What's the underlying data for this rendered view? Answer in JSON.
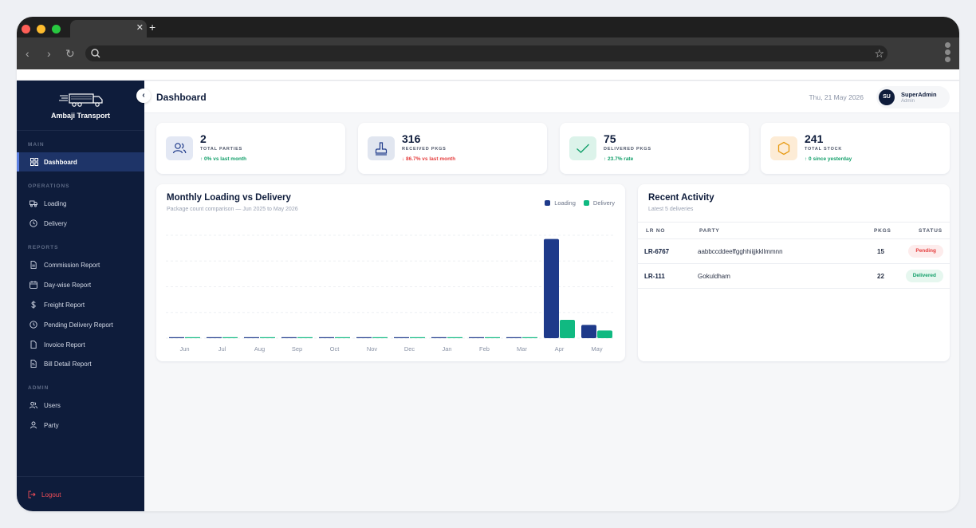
{
  "app": {
    "brand": "Ambaji Transport"
  },
  "header": {
    "title": "Dashboard",
    "date": "Thu, 21 May 2026",
    "user_initials": "SU",
    "user_name": "SuperAdmin",
    "user_role": "Admin"
  },
  "sidebar": {
    "sections": {
      "main": "MAIN",
      "operations": "OPERATIONS",
      "reports": "REPORTS",
      "admin": "ADMIN"
    },
    "items": [
      {
        "label": "Dashboard",
        "icon": "grid-icon"
      },
      {
        "label": "Loading",
        "icon": "truck-icon"
      },
      {
        "label": "Delivery",
        "icon": "clock-icon"
      },
      {
        "label": "Commission Report",
        "icon": "document-icon"
      },
      {
        "label": "Day-wise Report",
        "icon": "calendar-icon"
      },
      {
        "label": "Freight Report",
        "icon": "dollar-icon"
      },
      {
        "label": "Pending Delivery Report",
        "icon": "clock-icon"
      },
      {
        "label": "Invoice Report",
        "icon": "document-icon"
      },
      {
        "label": "Bill Detail Report",
        "icon": "receipt-icon"
      },
      {
        "label": "Users",
        "icon": "users-icon"
      },
      {
        "label": "Party",
        "icon": "user-icon"
      }
    ],
    "logout": "Logout"
  },
  "stats": [
    {
      "value": "2",
      "label": "TOTAL PARTIES",
      "delta": "↑ 0% vs last month",
      "trend": "up",
      "icon": "users-icon",
      "bg": "#e3e8f4",
      "color": "#1e3a8a"
    },
    {
      "value": "316",
      "label": "RECEIVED PKGS",
      "delta": "↓ 86.7% vs last month",
      "trend": "down",
      "icon": "inbox-icon",
      "bg": "#e1e6f0",
      "color": "#1e3a8a"
    },
    {
      "value": "75",
      "label": "DELIVERED PKGS",
      "delta": "↑ 23.7% rate",
      "trend": "up",
      "icon": "check-icon",
      "bg": "#dcf3ea",
      "color": "#14a06b"
    },
    {
      "value": "241",
      "label": "TOTAL STOCK",
      "delta": "↑ 0 since yesterday",
      "trend": "up",
      "icon": "hexagon-icon",
      "bg": "#fdecd6",
      "color": "#e79a12"
    }
  ],
  "chart": {
    "title": "Monthly Loading vs Delivery",
    "subtitle": "Package count comparison — Jun 2025 to May 2026",
    "legend": [
      "Loading",
      "Delivery"
    ]
  },
  "chart_data": {
    "type": "bar",
    "categories": [
      "Jun",
      "Jul",
      "Aug",
      "Sep",
      "Oct",
      "Nov",
      "Dec",
      "Jan",
      "Feb",
      "Mar",
      "Apr",
      "May"
    ],
    "series": [
      {
        "name": "Loading",
        "color": "#1e3a8a",
        "values": [
          0,
          0,
          0,
          0,
          0,
          0,
          0,
          0,
          0,
          0,
          270,
          36
        ]
      },
      {
        "name": "Delivery",
        "color": "#10b981",
        "values": [
          0,
          0,
          0,
          0,
          0,
          0,
          0,
          0,
          0,
          0,
          50,
          21
        ]
      }
    ],
    "ylim": [
      0,
      280
    ],
    "grid": true,
    "legend_position": "top-right"
  },
  "activity": {
    "title": "Recent Activity",
    "subtitle": "Latest 5 deliveries",
    "columns": [
      "LR NO",
      "PARTY",
      "PKGS",
      "STATUS"
    ],
    "rows": [
      {
        "lr": "LR-6767",
        "party": "aabbccddeeffgghhiijjkkllmmnn",
        "pkgs": "15",
        "status": "Pending",
        "status_kind": "pending"
      },
      {
        "lr": "LR-111",
        "party": "Gokuldham",
        "pkgs": "22",
        "status": "Delivered",
        "status_kind": "delivered"
      }
    ]
  }
}
